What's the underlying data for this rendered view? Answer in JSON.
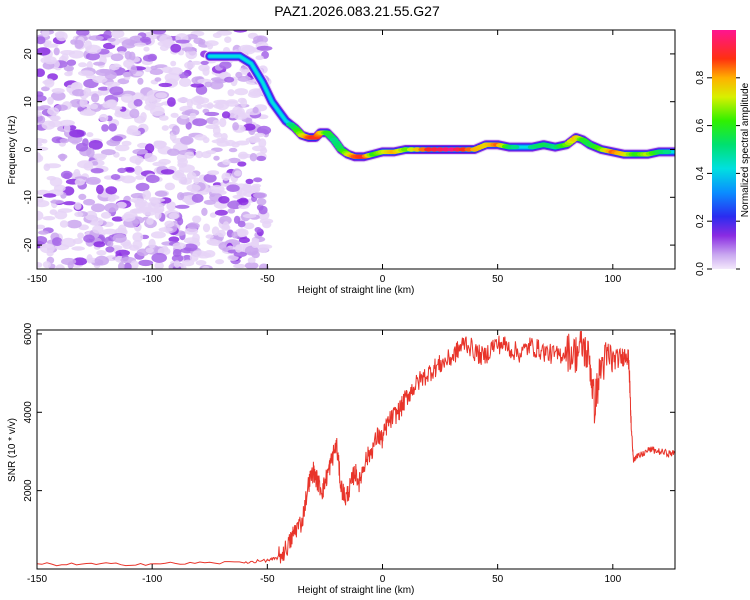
{
  "chart_data": [
    {
      "type": "heatmap",
      "title": "PAZ1.2026.083.21.55.G27",
      "xlabel": "Height of straight line (km)",
      "ylabel": "Frequency (Hz)",
      "xlim": [
        -150,
        127
      ],
      "ylim": [
        -25,
        25
      ],
      "x_ticks": [
        -150,
        -100,
        -50,
        0,
        50,
        100
      ],
      "x_tick_labels": [
        "-150",
        "-100",
        "-50",
        "0",
        "50",
        "100"
      ],
      "y_ticks": [
        -20,
        -10,
        0,
        10,
        20
      ],
      "y_tick_labels": [
        "-20",
        "-10",
        "0",
        "10",
        "20"
      ],
      "colorbar": {
        "label": "Normalized spectral amplitude",
        "range": [
          0,
          1
        ],
        "ticks": [
          0,
          0.2,
          0.4,
          0.6,
          0.8
        ],
        "tick_labels": [
          "0.0",
          "0.2",
          "0.4",
          "0.6",
          "0.8"
        ]
      },
      "noise_region_x": [
        -150,
        -50
      ],
      "ridge": {
        "x": [
          -75,
          -62,
          -57,
          -52,
          -48,
          -45,
          -42,
          -38,
          -35,
          -32,
          -29,
          -27,
          -24,
          -21,
          -18,
          -15,
          -12,
          -8,
          -4,
          0,
          5,
          10,
          20,
          30,
          40,
          45,
          50,
          55,
          60,
          65,
          70,
          75,
          80,
          84,
          87,
          90,
          95,
          100,
          105,
          110,
          115,
          120,
          127
        ],
        "frequency": [
          19.5,
          19.5,
          18,
          14,
          10,
          8,
          6,
          4.5,
          3,
          2.5,
          2.5,
          3.5,
          3.5,
          2,
          0,
          -1,
          -1.5,
          -1.5,
          -1,
          -0.5,
          -0.5,
          0,
          0,
          0,
          0,
          1,
          1,
          0.5,
          0.5,
          0.5,
          1,
          0.5,
          1,
          2.5,
          2,
          1,
          0,
          -0.5,
          -1,
          -1,
          -1,
          -0.5,
          -0.5
        ],
        "amplitude": [
          0.35,
          0.35,
          0.4,
          0.35,
          0.35,
          0.4,
          0.45,
          0.55,
          0.7,
          0.85,
          0.9,
          0.8,
          0.6,
          0.5,
          0.55,
          0.7,
          0.85,
          0.9,
          0.6,
          0.7,
          0.8,
          0.65,
          0.9,
          0.98,
          0.8,
          0.75,
          0.85,
          0.55,
          0.45,
          0.5,
          0.55,
          0.5,
          0.65,
          0.8,
          0.6,
          0.55,
          0.65,
          0.85,
          0.75,
          0.6,
          0.7,
          0.55,
          0.45
        ]
      }
    },
    {
      "type": "line",
      "xlabel": "Height of straight line (km)",
      "ylabel": "SNR (10 * v/v)",
      "xlim": [
        -150,
        127
      ],
      "ylim": [
        0,
        6100
      ],
      "x_ticks": [
        -150,
        -100,
        -50,
        0,
        50,
        100
      ],
      "x_tick_labels": [
        "-150",
        "-100",
        "-50",
        "0",
        "50",
        "100"
      ],
      "y_ticks": [
        2000,
        4000,
        6000
      ],
      "y_tick_labels": [
        "2000",
        "4000",
        "6000"
      ],
      "series": [
        {
          "name": "SNR",
          "color": "#e8342a",
          "x": [
            -150,
            -120,
            -90,
            -60,
            -50,
            -46,
            -43,
            -40,
            -38,
            -35,
            -32,
            -30,
            -28,
            -26,
            -24,
            -22,
            -20,
            -18,
            -16,
            -14,
            -12,
            -10,
            -8,
            -5,
            -2,
            0,
            2,
            5,
            8,
            10,
            13,
            16,
            20,
            23,
            26,
            30,
            33,
            36,
            40,
            44,
            48,
            52,
            56,
            60,
            64,
            68,
            72,
            76,
            80,
            84,
            87,
            90,
            92,
            95,
            98,
            101,
            104,
            106,
            107,
            108,
            109,
            112,
            116,
            120,
            124,
            127
          ],
          "values": [
            120,
            120,
            140,
            170,
            220,
            270,
            420,
            700,
            1000,
            1200,
            2200,
            2500,
            2200,
            2000,
            2400,
            2800,
            3200,
            2100,
            1800,
            2100,
            2500,
            2200,
            2700,
            3000,
            3400,
            3300,
            3700,
            3900,
            4100,
            4350,
            4600,
            4800,
            5000,
            5150,
            5250,
            5400,
            5600,
            5800,
            5550,
            5400,
            5700,
            5750,
            5600,
            5500,
            5700,
            5600,
            5500,
            5450,
            5550,
            5500,
            5700,
            5300,
            4200,
            5200,
            5400,
            5350,
            5400,
            5500,
            5300,
            3600,
            2800,
            2900,
            3050,
            3000,
            2950,
            2950
          ]
        }
      ]
    }
  ]
}
